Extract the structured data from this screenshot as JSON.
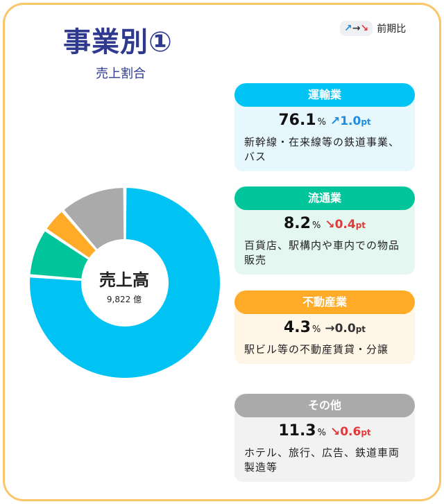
{
  "header": {
    "title": "事業別①",
    "subtitle": "売上割合",
    "legend_arrows": "↗→↘",
    "legend_label": "前期比"
  },
  "center": {
    "label": "売上高",
    "value": "9,822 億"
  },
  "segments": [
    {
      "name": "運輸業",
      "share": "76.1",
      "unit": "%",
      "arrow": "↗",
      "change": "1.0",
      "change_unit": "pt",
      "direction": "up",
      "description": "新幹線・在来線等の鉄道事業、バス",
      "color": "#00c2f3",
      "bg": "#e6f7fd"
    },
    {
      "name": "流通業",
      "share": "8.2",
      "unit": "%",
      "arrow": "↘",
      "change": "0.4",
      "change_unit": "pt",
      "direction": "down",
      "description": "百貨店、駅構内や車内での物品販売",
      "color": "#00c49a",
      "bg": "#e5f7f1"
    },
    {
      "name": "不動産業",
      "share": "4.3",
      "unit": "%",
      "arrow": "→",
      "change": "0.0",
      "change_unit": "pt",
      "direction": "flat",
      "description": "駅ビル等の不動産賃貸・分譲",
      "color": "#ffab28",
      "bg": "#fff6e8"
    },
    {
      "name": "その他",
      "share": "11.3",
      "unit": "%",
      "arrow": "↘",
      "change": "0.6",
      "change_unit": "pt",
      "direction": "down",
      "description": "ホテル、旅行、広告、鉄道車両製造等",
      "color": "#aaaaaa",
      "bg": "#f2f2f2"
    }
  ],
  "chart_data": {
    "type": "pie",
    "categories": [
      "運輸業",
      "流通業",
      "不動産業",
      "その他"
    ],
    "values": [
      76.1,
      8.2,
      4.3,
      11.3
    ],
    "colors": [
      "#00c2f3",
      "#00c49a",
      "#ffab28",
      "#aaaaaa"
    ]
  }
}
